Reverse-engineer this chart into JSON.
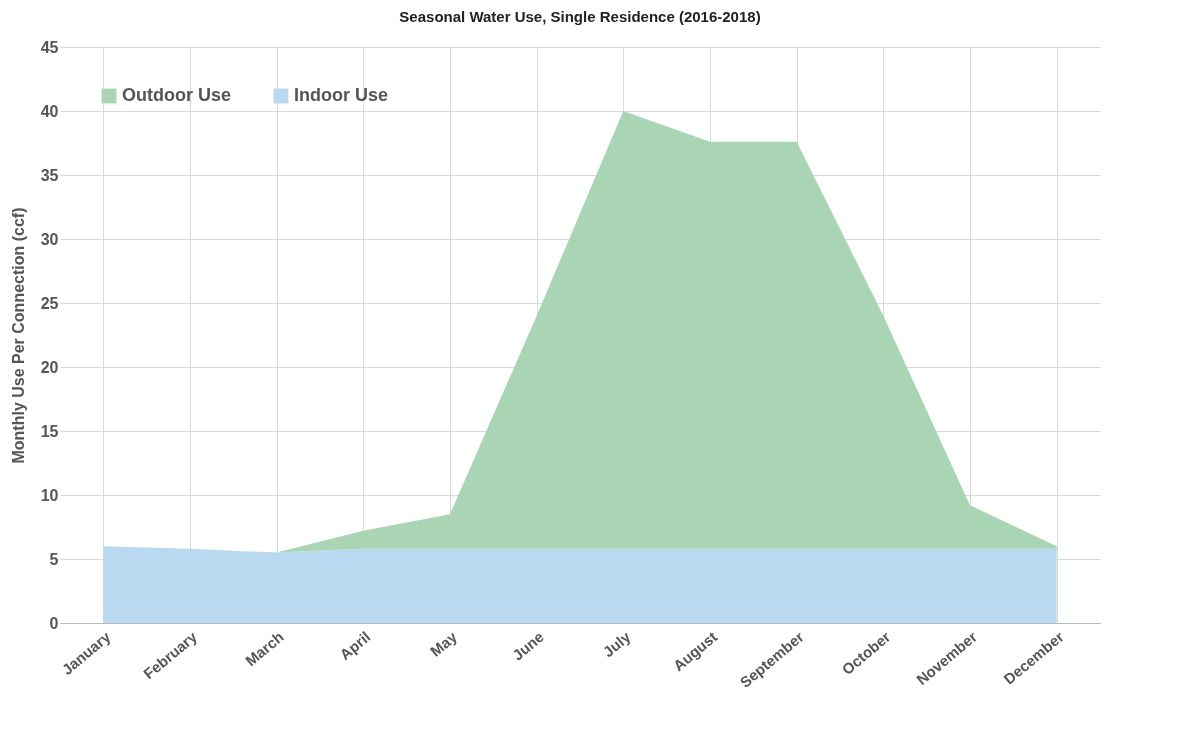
{
  "chart_data": {
    "type": "area",
    "title": "Seasonal Water Use, Single Residence (2016-2018)",
    "ylabel": "Monthly Use Per Connection (ccf)",
    "categories": [
      "January",
      "February",
      "March",
      "April",
      "May",
      "June",
      "July",
      "August",
      "September",
      "October",
      "November",
      "December"
    ],
    "stacked": true,
    "series": [
      {
        "name": "Indoor Use",
        "color": "#b9d9f0",
        "values": [
          6.0,
          5.8,
          5.5,
          5.8,
          5.8,
          5.8,
          5.8,
          5.8,
          5.8,
          5.8,
          5.8,
          5.8
        ]
      },
      {
        "name": "Outdoor Use",
        "color": "#a9d5b4",
        "values": [
          0,
          0,
          0,
          1.4,
          2.7,
          18.2,
          34.2,
          31.8,
          31.8,
          18.2,
          3.4,
          0.2
        ]
      }
    ],
    "ylim": [
      0,
      45
    ],
    "yticks": [
      0,
      5,
      10,
      15,
      20,
      25,
      30,
      35,
      40,
      45
    ],
    "grid": true,
    "legend": "top left"
  }
}
